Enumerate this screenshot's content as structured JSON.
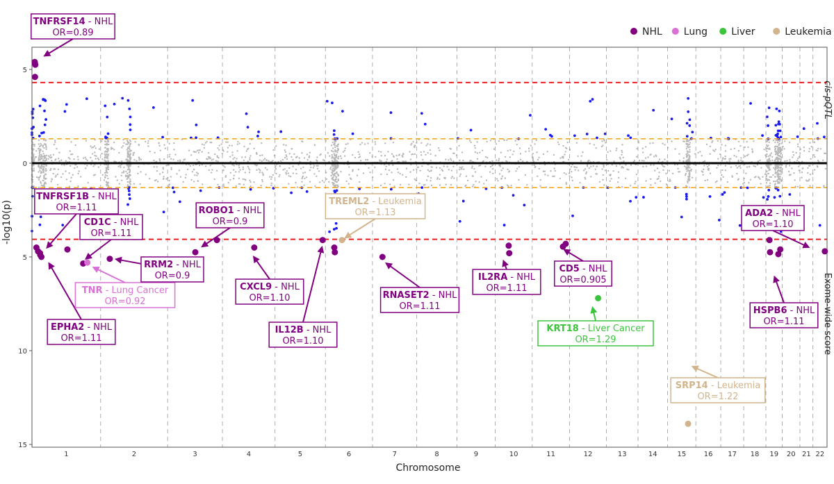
{
  "chart_data": {
    "type": "scatter",
    "title": "",
    "xlabel": "Chromosome",
    "ylabel": "-log10(p)",
    "upper_panel_label": "cis-pQTL",
    "lower_panel_label": "Exome-wide score",
    "y_ticks": [
      {
        "value": 5,
        "label": "5"
      },
      {
        "value": 0,
        "label": "0"
      },
      {
        "value": -5,
        "label": "5"
      },
      {
        "value": -10,
        "label": "10"
      },
      {
        "value": -15,
        "label": "15"
      }
    ],
    "ylim": [
      -15,
      6.2
    ],
    "thresholds": {
      "significance_upper": 4.3,
      "significance_lower": -4.06,
      "suggestive_upper": 1.3,
      "suggestive_lower": -1.3
    },
    "chromosomes": [
      {
        "label": "1",
        "start": 0,
        "end": 248
      },
      {
        "label": "2",
        "start": 248,
        "end": 490
      },
      {
        "label": "3",
        "start": 490,
        "end": 688
      },
      {
        "label": "4",
        "start": 688,
        "end": 878
      },
      {
        "label": "5",
        "start": 878,
        "end": 1060
      },
      {
        "label": "6",
        "start": 1060,
        "end": 1230
      },
      {
        "label": "7",
        "start": 1230,
        "end": 1390
      },
      {
        "label": "8",
        "start": 1390,
        "end": 1535
      },
      {
        "label": "9",
        "start": 1535,
        "end": 1673
      },
      {
        "label": "10",
        "start": 1673,
        "end": 1807
      },
      {
        "label": "11",
        "start": 1807,
        "end": 1942
      },
      {
        "label": "12",
        "start": 1942,
        "end": 2075
      },
      {
        "label": "13",
        "start": 2075,
        "end": 2189
      },
      {
        "label": "14",
        "start": 2189,
        "end": 2296
      },
      {
        "label": "15",
        "start": 2296,
        "end": 2398
      },
      {
        "label": "16",
        "start": 2398,
        "end": 2488
      },
      {
        "label": "17",
        "start": 2488,
        "end": 2571
      },
      {
        "label": "18",
        "start": 2571,
        "end": 2651
      },
      {
        "label": "19",
        "start": 2651,
        "end": 2710
      },
      {
        "label": "20",
        "start": 2710,
        "end": 2774
      },
      {
        "label": "21",
        "start": 2774,
        "end": 2821
      },
      {
        "label": "22",
        "start": 2821,
        "end": 2872
      }
    ],
    "legend": [
      {
        "name": "NHL",
        "color": "#800080"
      },
      {
        "name": "Lung",
        "color": "#da70d6"
      },
      {
        "name": "Liver",
        "color": "#3cc43c"
      },
      {
        "name": "Leukemia",
        "color": "#d2b48c"
      }
    ],
    "series": [
      {
        "name": "NHL",
        "color": "#800080",
        "points": [
          {
            "x": 10,
            "y": 5.4
          },
          {
            "x": 11,
            "y": 5.3
          },
          {
            "x": 12,
            "y": 5.25
          },
          {
            "x": 11,
            "y": 4.6
          },
          {
            "x": 16,
            "y": -4.5
          },
          {
            "x": 22,
            "y": -4.7
          },
          {
            "x": 29,
            "y": -4.8
          },
          {
            "x": 34,
            "y": -5.0
          },
          {
            "x": 30,
            "y": -4.9
          },
          {
            "x": 128,
            "y": -4.6
          },
          {
            "x": 185,
            "y": -5.35
          },
          {
            "x": 281,
            "y": -5.1
          },
          {
            "x": 590,
            "y": -4.75
          },
          {
            "x": 668,
            "y": -4.1
          },
          {
            "x": 803,
            "y": -4.5
          },
          {
            "x": 1050,
            "y": -4.1
          },
          {
            "x": 1092,
            "y": -4.5
          },
          {
            "x": 1094,
            "y": -4.75
          },
          {
            "x": 1266,
            "y": -5.0
          },
          {
            "x": 1722,
            "y": -4.4
          },
          {
            "x": 1724,
            "y": -4.8
          },
          {
            "x": 1918,
            "y": -4.45
          },
          {
            "x": 1928,
            "y": -4.3
          },
          {
            "x": 2664,
            "y": -4.1
          },
          {
            "x": 2666,
            "y": -4.75
          },
          {
            "x": 2703,
            "y": -4.6
          },
          {
            "x": 2696,
            "y": -4.85
          },
          {
            "x": 2864,
            "y": -4.7
          }
        ]
      },
      {
        "name": "Lung",
        "color": "#da70d6",
        "points": [
          {
            "x": 200,
            "y": -5.3
          }
        ]
      },
      {
        "name": "Liver",
        "color": "#3cc43c",
        "points": [
          {
            "x": 2045,
            "y": -7.2
          }
        ]
      },
      {
        "name": "Leukemia",
        "color": "#d2b48c",
        "points": [
          {
            "x": 1120,
            "y": -4.1
          },
          {
            "x": 2370,
            "y": -13.9
          }
        ]
      }
    ],
    "annotations": [
      {
        "gene": "TNFRSF14",
        "rest": " - NHL",
        "or_text": "OR=0.89",
        "category": "NHL"
      },
      {
        "gene": "TNFRSF1B",
        "rest": " - NHL",
        "or_text": "OR=1.11",
        "category": "NHL"
      },
      {
        "gene": "CD1C",
        "rest": " - NHL",
        "or_text": "OR=1.11",
        "category": "NHL"
      },
      {
        "gene": "TNR",
        "rest": " - Lung Cancer",
        "or_text": "OR=0.92",
        "category": "Lung"
      },
      {
        "gene": "EPHA2",
        "rest": " - NHL",
        "or_text": "OR=1.11",
        "category": "NHL"
      },
      {
        "gene": "RRM2",
        "rest": " - NHL",
        "or_text": "OR=0.9",
        "category": "NHL"
      },
      {
        "gene": "ROBO1",
        "rest": " - NHL",
        "or_text": "OR=0.9",
        "category": "NHL"
      },
      {
        "gene": "CXCL9",
        "rest": " - NHL",
        "or_text": "OR=1.10",
        "category": "NHL"
      },
      {
        "gene": "IL12B",
        "rest": " - NHL",
        "or_text": "OR=1.10",
        "category": "NHL"
      },
      {
        "gene": "TREML2",
        "rest": " - Leukemia",
        "or_text": "OR=1.13",
        "category": "Leukemia"
      },
      {
        "gene": "RNASET2",
        "rest": " - NHL",
        "or_text": "OR=1.11",
        "category": "NHL"
      },
      {
        "gene": "IL2RA",
        "rest": " - NHL",
        "or_text": "OR=1.11",
        "category": "NHL"
      },
      {
        "gene": "CD5",
        "rest": " - NHL",
        "or_text": "OR=0.905",
        "category": "NHL"
      },
      {
        "gene": "KRT18",
        "rest": " - Liver Cancer",
        "or_text": "OR=1.29",
        "category": "Liver"
      },
      {
        "gene": "SRP14",
        "rest": " - Leukemia",
        "or_text": "OR=1.22",
        "category": "Leukemia"
      },
      {
        "gene": "ADA2",
        "rest": " - NHL",
        "or_text": "OR=1.10",
        "category": "NHL"
      },
      {
        "gene": "HSPB6",
        "rest": " - NHL",
        "or_text": "OR=1.11",
        "category": "NHL"
      }
    ],
    "grid": false,
    "legend_position": "top-right"
  }
}
